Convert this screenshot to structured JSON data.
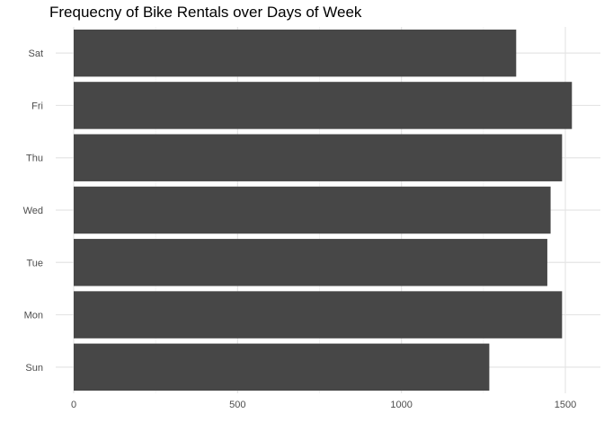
{
  "chart_data": {
    "type": "bar",
    "orientation": "horizontal",
    "title": "Frequecny of Bike Rentals over Days of Week",
    "xlabel": "",
    "ylabel": "",
    "categories": [
      "Sun",
      "Mon",
      "Tue",
      "Wed",
      "Thu",
      "Fri",
      "Sat"
    ],
    "values": [
      1268,
      1490,
      1445,
      1455,
      1490,
      1520,
      1350
    ],
    "xlim": [
      0,
      1500
    ],
    "xticks": [
      0,
      500,
      1000,
      1500
    ],
    "grid": true,
    "legend": "none",
    "bar_color": "#474747",
    "grid_major_color": "#e5e5e5",
    "grid_minor_color": "#f2f2f2"
  }
}
